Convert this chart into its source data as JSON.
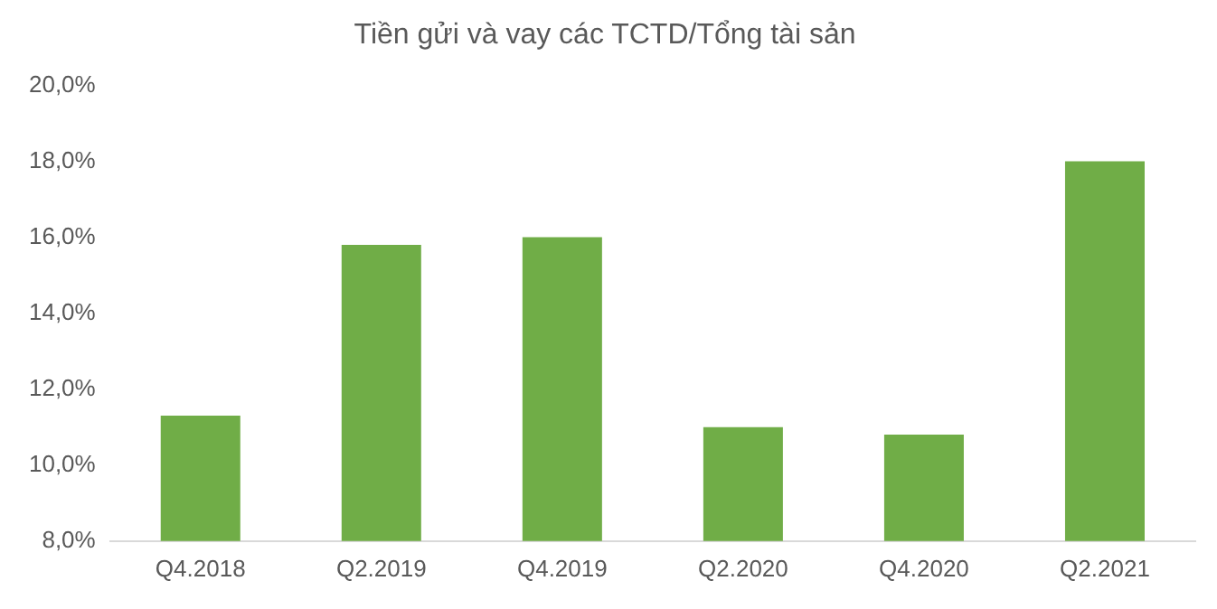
{
  "chart_data": {
    "type": "bar",
    "title": "Tiền gửi và vay các TCTD/Tổng tài sản",
    "categories": [
      "Q4.2018",
      "Q2.2019",
      "Q4.2019",
      "Q2.2020",
      "Q4.2020",
      "Q2.2021"
    ],
    "values": [
      11.3,
      15.8,
      16.0,
      11.0,
      10.8,
      18.0
    ],
    "color": "#70ad47",
    "ylim": [
      8,
      20
    ],
    "yticks": [
      {
        "value": 8,
        "label": "8,0%"
      },
      {
        "value": 10,
        "label": "10,0%"
      },
      {
        "value": 12,
        "label": "12,0%"
      },
      {
        "value": 14,
        "label": "14,0%"
      },
      {
        "value": 16,
        "label": "16,0%"
      },
      {
        "value": 18,
        "label": "18,0%"
      },
      {
        "value": 20,
        "label": "20,0%"
      }
    ],
    "grid": false,
    "legend": false
  }
}
